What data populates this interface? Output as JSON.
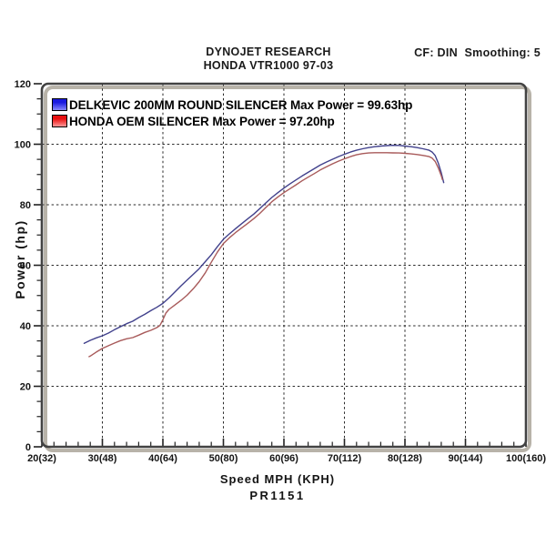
{
  "header": {
    "line1": "DYNOJET RESEARCH",
    "line2": "HONDA VTR1000 97-03",
    "right": "CF: DIN  Smoothing: 5"
  },
  "footer": {
    "code": "PR1151"
  },
  "legend": [
    {
      "label": "DELKEVIC 200MM ROUND SILENCER Max Power = 99.63hp",
      "swatch_top": "#1a1ae0",
      "swatch_bottom": "#8888ff"
    },
    {
      "label": "HONDA OEM SILENCER Max Power = 97.20hp",
      "swatch_top": "#e81010",
      "swatch_bottom": "#ff9898"
    }
  ],
  "colors": {
    "frame": "#424242",
    "frame_shadow": "#b8b3a9",
    "grid": "#2a2a2a",
    "tick": "#222222"
  },
  "chart_data": {
    "type": "line",
    "title": "DYNOJET RESEARCH",
    "subtitle": "HONDA VTR1000 97-03",
    "correction_note": "CF: DIN  Smoothing: 5",
    "xlabel": "Speed MPH (KPH)",
    "ylabel": "Power (hp)",
    "xlim": [
      20,
      100
    ],
    "ylim": [
      0,
      120
    ],
    "grid": "dashed-major",
    "legend_position": "top-left-inside",
    "x_major_ticks": [
      20,
      30,
      40,
      50,
      60,
      70,
      80,
      90,
      100
    ],
    "x_tick_labels": [
      "20(32)",
      "30(48)",
      "40(64)",
      "50(80)",
      "60(96)",
      "70(112)",
      "80(128)",
      "90(144)",
      "100(160)"
    ],
    "x_minor_step": 2,
    "y_major_ticks": [
      0,
      20,
      40,
      60,
      80,
      100,
      120
    ],
    "y_tick_labels": [
      "0",
      "20",
      "40",
      "60",
      "80",
      "100",
      "120"
    ],
    "y_minor_step": 5,
    "series": [
      {
        "name": "DELKEVIC 200MM ROUND SILENCER",
        "max_power_hp": 99.63,
        "color": "#41418c",
        "points": [
          [
            27.0,
            34.2
          ],
          [
            28,
            35.2
          ],
          [
            29,
            36.0
          ],
          [
            30,
            36.7
          ],
          [
            31,
            37.6
          ],
          [
            32,
            38.7
          ],
          [
            33,
            39.7
          ],
          [
            34,
            40.7
          ],
          [
            35,
            41.5
          ],
          [
            36,
            42.7
          ],
          [
            37,
            43.8
          ],
          [
            38,
            45.0
          ],
          [
            39,
            46.1
          ],
          [
            40,
            47.4
          ],
          [
            41,
            49.2
          ],
          [
            42,
            51.2
          ],
          [
            43,
            53.2
          ],
          [
            44,
            55.1
          ],
          [
            45,
            57.0
          ],
          [
            46,
            58.9
          ],
          [
            47,
            61.2
          ],
          [
            48,
            63.5
          ],
          [
            49,
            66.1
          ],
          [
            50,
            68.6
          ],
          [
            51,
            70.4
          ],
          [
            52,
            72.1
          ],
          [
            53,
            73.7
          ],
          [
            54,
            75.3
          ],
          [
            55,
            76.9
          ],
          [
            56,
            78.7
          ],
          [
            57,
            80.6
          ],
          [
            58,
            82.4
          ],
          [
            59,
            84.0
          ],
          [
            60,
            85.5
          ],
          [
            61,
            86.9
          ],
          [
            62,
            88.2
          ],
          [
            63,
            89.5
          ],
          [
            64,
            90.7
          ],
          [
            65,
            91.9
          ],
          [
            66,
            93.1
          ],
          [
            67,
            94.1
          ],
          [
            68,
            95.0
          ],
          [
            69,
            95.9
          ],
          [
            70,
            96.7
          ],
          [
            71,
            97.4
          ],
          [
            72,
            98.0
          ],
          [
            73,
            98.5
          ],
          [
            74,
            98.9
          ],
          [
            75,
            99.2
          ],
          [
            76,
            99.4
          ],
          [
            77,
            99.55
          ],
          [
            78,
            99.63
          ],
          [
            79,
            99.6
          ],
          [
            80,
            99.4
          ],
          [
            81,
            99.2
          ],
          [
            82,
            98.9
          ],
          [
            83,
            98.5
          ],
          [
            84,
            98.0
          ],
          [
            84.5,
            97.4
          ],
          [
            85,
            96.2
          ],
          [
            85.5,
            93.8
          ],
          [
            86,
            90.6
          ],
          [
            86.4,
            87.3
          ]
        ]
      },
      {
        "name": "HONDA OEM SILENCER",
        "max_power_hp": 97.2,
        "color": "#a85a5a",
        "points": [
          [
            27.8,
            29.8
          ],
          [
            28,
            30.0
          ],
          [
            29,
            31.3
          ],
          [
            30,
            32.5
          ],
          [
            31,
            33.4
          ],
          [
            32,
            34.3
          ],
          [
            33,
            35.1
          ],
          [
            34,
            35.7
          ],
          [
            35,
            36.1
          ],
          [
            36,
            36.9
          ],
          [
            37,
            37.8
          ],
          [
            38,
            38.5
          ],
          [
            39,
            39.4
          ],
          [
            39.5,
            40.1
          ],
          [
            40,
            42.0
          ],
          [
            40.5,
            44.2
          ],
          [
            41,
            45.4
          ],
          [
            42,
            46.9
          ],
          [
            43,
            48.4
          ],
          [
            44,
            50.1
          ],
          [
            45,
            52.2
          ],
          [
            46,
            54.6
          ],
          [
            47,
            57.5
          ],
          [
            48,
            61.0
          ],
          [
            49,
            64.3
          ],
          [
            50,
            67.2
          ],
          [
            51,
            69.1
          ],
          [
            52,
            70.8
          ],
          [
            53,
            72.3
          ],
          [
            54,
            73.8
          ],
          [
            55,
            75.4
          ],
          [
            56,
            77.1
          ],
          [
            57,
            79.1
          ],
          [
            58,
            81.0
          ],
          [
            59,
            82.6
          ],
          [
            60,
            84.0
          ],
          [
            61,
            85.3
          ],
          [
            62,
            86.6
          ],
          [
            63,
            87.9
          ],
          [
            64,
            89.1
          ],
          [
            65,
            90.3
          ],
          [
            66,
            91.5
          ],
          [
            67,
            92.5
          ],
          [
            68,
            93.5
          ],
          [
            69,
            94.4
          ],
          [
            70,
            95.2
          ],
          [
            71,
            95.9
          ],
          [
            72,
            96.5
          ],
          [
            73,
            96.9
          ],
          [
            74,
            97.1
          ],
          [
            75,
            97.2
          ],
          [
            76,
            97.2
          ],
          [
            77,
            97.2
          ],
          [
            78,
            97.15
          ],
          [
            79,
            97.1
          ],
          [
            80,
            97.0
          ],
          [
            81,
            96.8
          ],
          [
            82,
            96.6
          ],
          [
            83,
            96.3
          ],
          [
            84,
            95.9
          ],
          [
            84.5,
            95.4
          ],
          [
            85,
            94.3
          ],
          [
            85.5,
            92.2
          ],
          [
            86,
            89.6
          ],
          [
            86.2,
            88.3
          ]
        ]
      }
    ]
  }
}
